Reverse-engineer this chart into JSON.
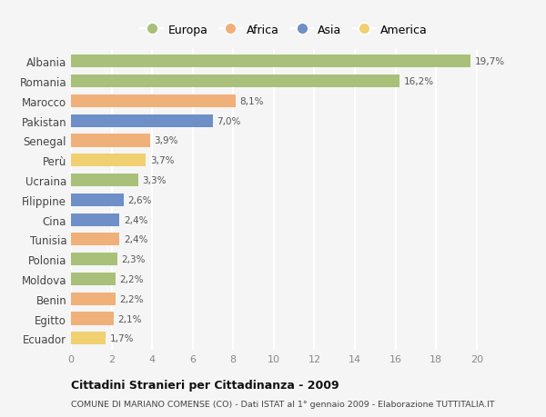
{
  "categories": [
    "Albania",
    "Romania",
    "Marocco",
    "Pakistan",
    "Senegal",
    "Perù",
    "Ucraina",
    "Filippine",
    "Cina",
    "Tunisia",
    "Polonia",
    "Moldova",
    "Benin",
    "Egitto",
    "Ecuador"
  ],
  "values": [
    19.7,
    16.2,
    8.1,
    7.0,
    3.9,
    3.7,
    3.3,
    2.6,
    2.4,
    2.4,
    2.3,
    2.2,
    2.2,
    2.1,
    1.7
  ],
  "labels": [
    "19,7%",
    "16,2%",
    "8,1%",
    "7,0%",
    "3,9%",
    "3,7%",
    "3,3%",
    "2,6%",
    "2,4%",
    "2,4%",
    "2,3%",
    "2,2%",
    "2,2%",
    "2,1%",
    "1,7%"
  ],
  "continents": [
    "Europa",
    "Europa",
    "Africa",
    "Asia",
    "Africa",
    "America",
    "Europa",
    "Asia",
    "Asia",
    "Africa",
    "Europa",
    "Europa",
    "Africa",
    "Africa",
    "America"
  ],
  "colors": {
    "Europa": "#a8c07a",
    "Africa": "#f0b07a",
    "Asia": "#6e8fc7",
    "America": "#f0d070"
  },
  "legend_order": [
    "Europa",
    "Africa",
    "Asia",
    "America"
  ],
  "xlim": [
    0,
    21
  ],
  "xticks": [
    0,
    2,
    4,
    6,
    8,
    10,
    12,
    14,
    16,
    18,
    20
  ],
  "title": "Cittadini Stranieri per Cittadinanza - 2009",
  "subtitle": "COMUNE DI MARIANO COMENSE (CO) - Dati ISTAT al 1° gennaio 2009 - Elaborazione TUTTITALIA.IT",
  "bg_color": "#f5f5f5",
  "grid_color": "#ffffff",
  "bar_height": 0.65
}
